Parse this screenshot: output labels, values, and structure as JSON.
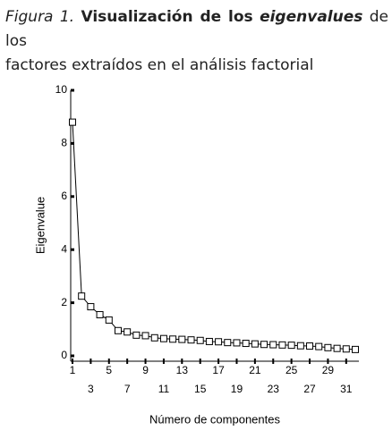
{
  "chart_data": {
    "type": "line",
    "title": [
      "Figura 1.",
      "Visualización de los",
      "eigenvalues",
      "de los",
      "factores extraídos en el análisis factorial"
    ],
    "xlabel": "Número de componentes",
    "ylabel": "Eigenvalue",
    "x": [
      1,
      2,
      3,
      4,
      5,
      6,
      7,
      8,
      9,
      10,
      11,
      12,
      13,
      14,
      15,
      16,
      17,
      18,
      19,
      20,
      21,
      22,
      23,
      24,
      25,
      26,
      27,
      28,
      29,
      30,
      31,
      32
    ],
    "series": [
      {
        "name": "Eigenvalue",
        "color": "#000000",
        "values": [
          8.8,
          2.25,
          1.85,
          1.55,
          1.35,
          0.95,
          0.9,
          0.78,
          0.76,
          0.68,
          0.65,
          0.63,
          0.62,
          0.6,
          0.58,
          0.54,
          0.53,
          0.5,
          0.49,
          0.47,
          0.45,
          0.43,
          0.42,
          0.41,
          0.4,
          0.38,
          0.37,
          0.35,
          0.31,
          0.28,
          0.26,
          0.24
        ]
      }
    ],
    "xlim": [
      1,
      32
    ],
    "xticks": [
      1,
      3,
      5,
      7,
      9,
      11,
      13,
      15,
      17,
      19,
      21,
      23,
      25,
      27,
      29,
      31
    ],
    "ylim": [
      0,
      10
    ],
    "yticks": [
      0,
      2,
      4,
      6,
      8,
      10
    ]
  }
}
